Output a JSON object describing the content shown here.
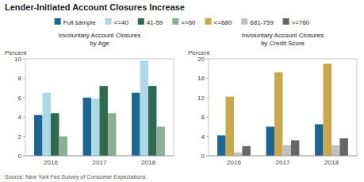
{
  "title": "Lender-Initiated Account Closures Increase",
  "source": "Source:  New York Fed Survey of Consumer Expectations.",
  "chart_data": [
    {
      "type": "bar",
      "title": "Involuntary Account Closures",
      "subtitle": "by Age",
      "ylabel": "Percent",
      "categories": [
        "2016",
        "2017",
        "2018"
      ],
      "series": [
        {
          "name": "Full sample",
          "color": "#1a6496",
          "values": [
            4.2,
            6.0,
            6.5
          ]
        },
        {
          "name": "<=40",
          "color": "#add8e6",
          "values": [
            6.5,
            5.9,
            9.8
          ]
        },
        {
          "name": "41-59",
          "color": "#2d6a4f",
          "values": [
            4.4,
            7.2,
            7.2
          ]
        },
        {
          "name": ">=60",
          "color": "#8fad91",
          "values": [
            2.0,
            4.4,
            3.0
          ]
        }
      ],
      "ylim": [
        0,
        10
      ],
      "yticks": [
        0,
        2,
        4,
        6,
        8,
        10
      ],
      "grid": false,
      "legend": "top"
    },
    {
      "type": "bar",
      "title": "Involuntary Account Closures",
      "subtitle": "by Credit Score",
      "ylabel": "Percent",
      "categories": [
        "2016",
        "2017",
        "2018"
      ],
      "series": [
        {
          "name": "Full sample",
          "color": "#1a6496",
          "values": [
            4.2,
            6.0,
            6.5
          ]
        },
        {
          "name": "<=680",
          "color": "#c8a84b",
          "values": [
            12.2,
            17.2,
            19.0
          ]
        },
        {
          "name": "681-759",
          "color": "#c0c0c0",
          "values": [
            0.7,
            2.2,
            2.2
          ]
        },
        {
          "name": ">=760",
          "color": "#666666",
          "values": [
            2.0,
            3.2,
            3.6
          ]
        }
      ],
      "ylim": [
        0,
        20
      ],
      "yticks": [
        0,
        4,
        8,
        12,
        16,
        20
      ],
      "grid": false,
      "legend": "top"
    }
  ]
}
